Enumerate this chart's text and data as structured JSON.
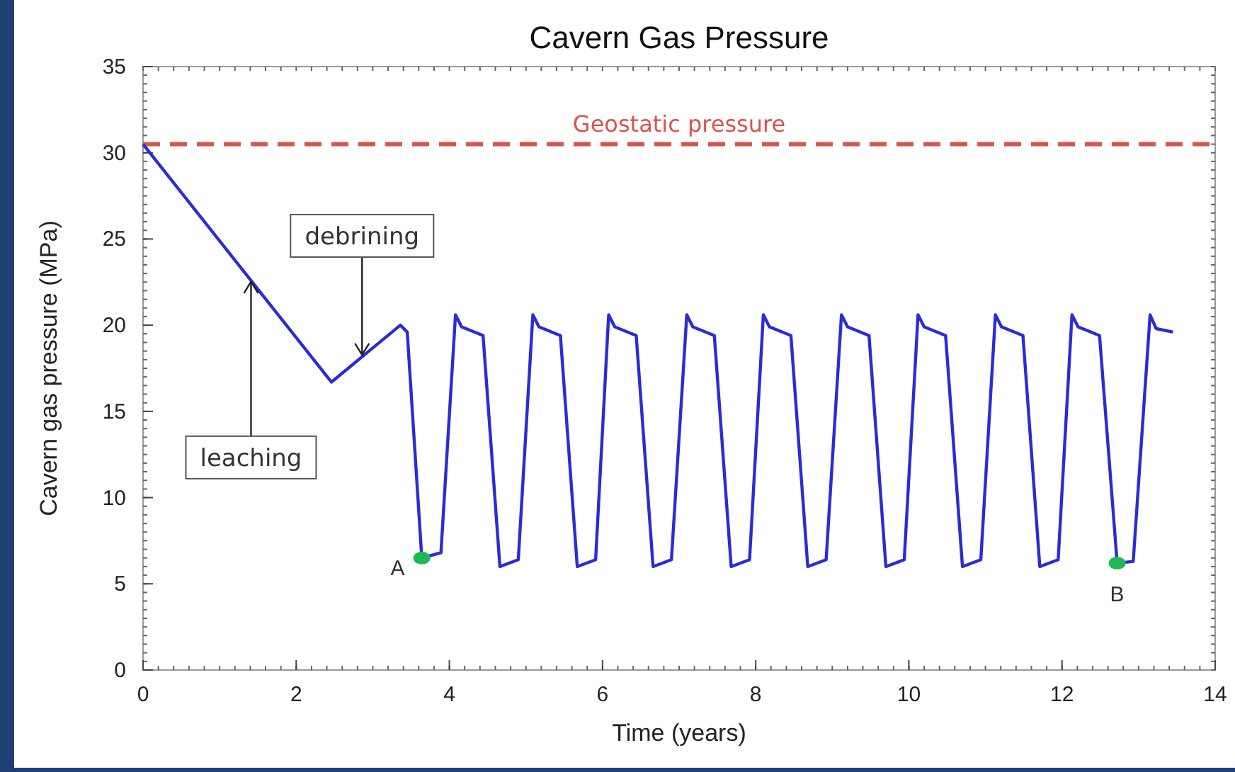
{
  "chart_data": {
    "type": "line",
    "title": "Cavern Gas Pressure",
    "xlabel": "Time (years)",
    "ylabel": "Cavern gas pressure (MPa)",
    "xlim": [
      0,
      14
    ],
    "xticks": [
      0,
      2,
      4,
      6,
      8,
      10,
      12,
      14
    ],
    "ylim": [
      0,
      35
    ],
    "yticks": [
      0,
      5,
      10,
      15,
      20,
      25,
      30,
      35
    ],
    "grid": false,
    "marker": "none",
    "line_style": "solid",
    "series": [
      {
        "color": "#2b2bd9",
        "x": [
          0,
          2.46,
          3.36,
          3.45,
          3.64,
          3.89,
          4.08,
          4.16,
          4.44,
          4.66,
          4.9,
          5.09,
          5.17,
          5.45,
          5.67,
          5.91,
          6.08,
          6.16,
          6.44,
          6.66,
          6.9,
          7.1,
          7.18,
          7.46,
          7.68,
          7.92,
          8.1,
          8.18,
          8.46,
          8.68,
          8.92,
          9.12,
          9.2,
          9.48,
          9.7,
          9.94,
          10.12,
          10.2,
          10.48,
          10.7,
          10.94,
          11.13,
          11.21,
          11.49,
          11.71,
          11.95,
          12.13,
          12.21,
          12.49,
          12.72,
          12.93,
          13.15,
          13.23,
          13.45
        ],
        "values": [
          30.5,
          16.7,
          20,
          19.6,
          6.5,
          6.8,
          20.6,
          19.9,
          19.4,
          6,
          6.4,
          20.6,
          19.9,
          19.4,
          6,
          6.4,
          20.6,
          19.9,
          19.4,
          6,
          6.4,
          20.6,
          19.9,
          19.4,
          6,
          6.4,
          20.6,
          19.9,
          19.4,
          6,
          6.4,
          20.6,
          19.9,
          19.4,
          6,
          6.4,
          20.6,
          19.9,
          19.4,
          6,
          6.4,
          20.6,
          19.9,
          19.4,
          6,
          6.4,
          20.6,
          19.9,
          19.4,
          6.2,
          6.3,
          20.6,
          19.8,
          19.6
        ]
      },
      {
        "type": "scatter",
        "color": "#1db954",
        "marker": "circle",
        "x": [
          3.64,
          12.72
        ],
        "values": [
          6.5,
          6.2
        ]
      }
    ],
    "ref_lines": [
      {
        "axis": "y",
        "value": 30.5,
        "label": "Geostatic pressure",
        "color": "#d9534f",
        "line_style": "dashed"
      }
    ],
    "annotations": [
      {
        "text": "leaching",
        "x": 1.41,
        "y": 22.6
      },
      {
        "text": "debrining",
        "x": 2.86,
        "y": 18.2
      },
      {
        "text": "A",
        "x": 3.64,
        "y": 6.5
      },
      {
        "text": "B",
        "x": 12.72,
        "y": 6.2
      }
    ]
  }
}
